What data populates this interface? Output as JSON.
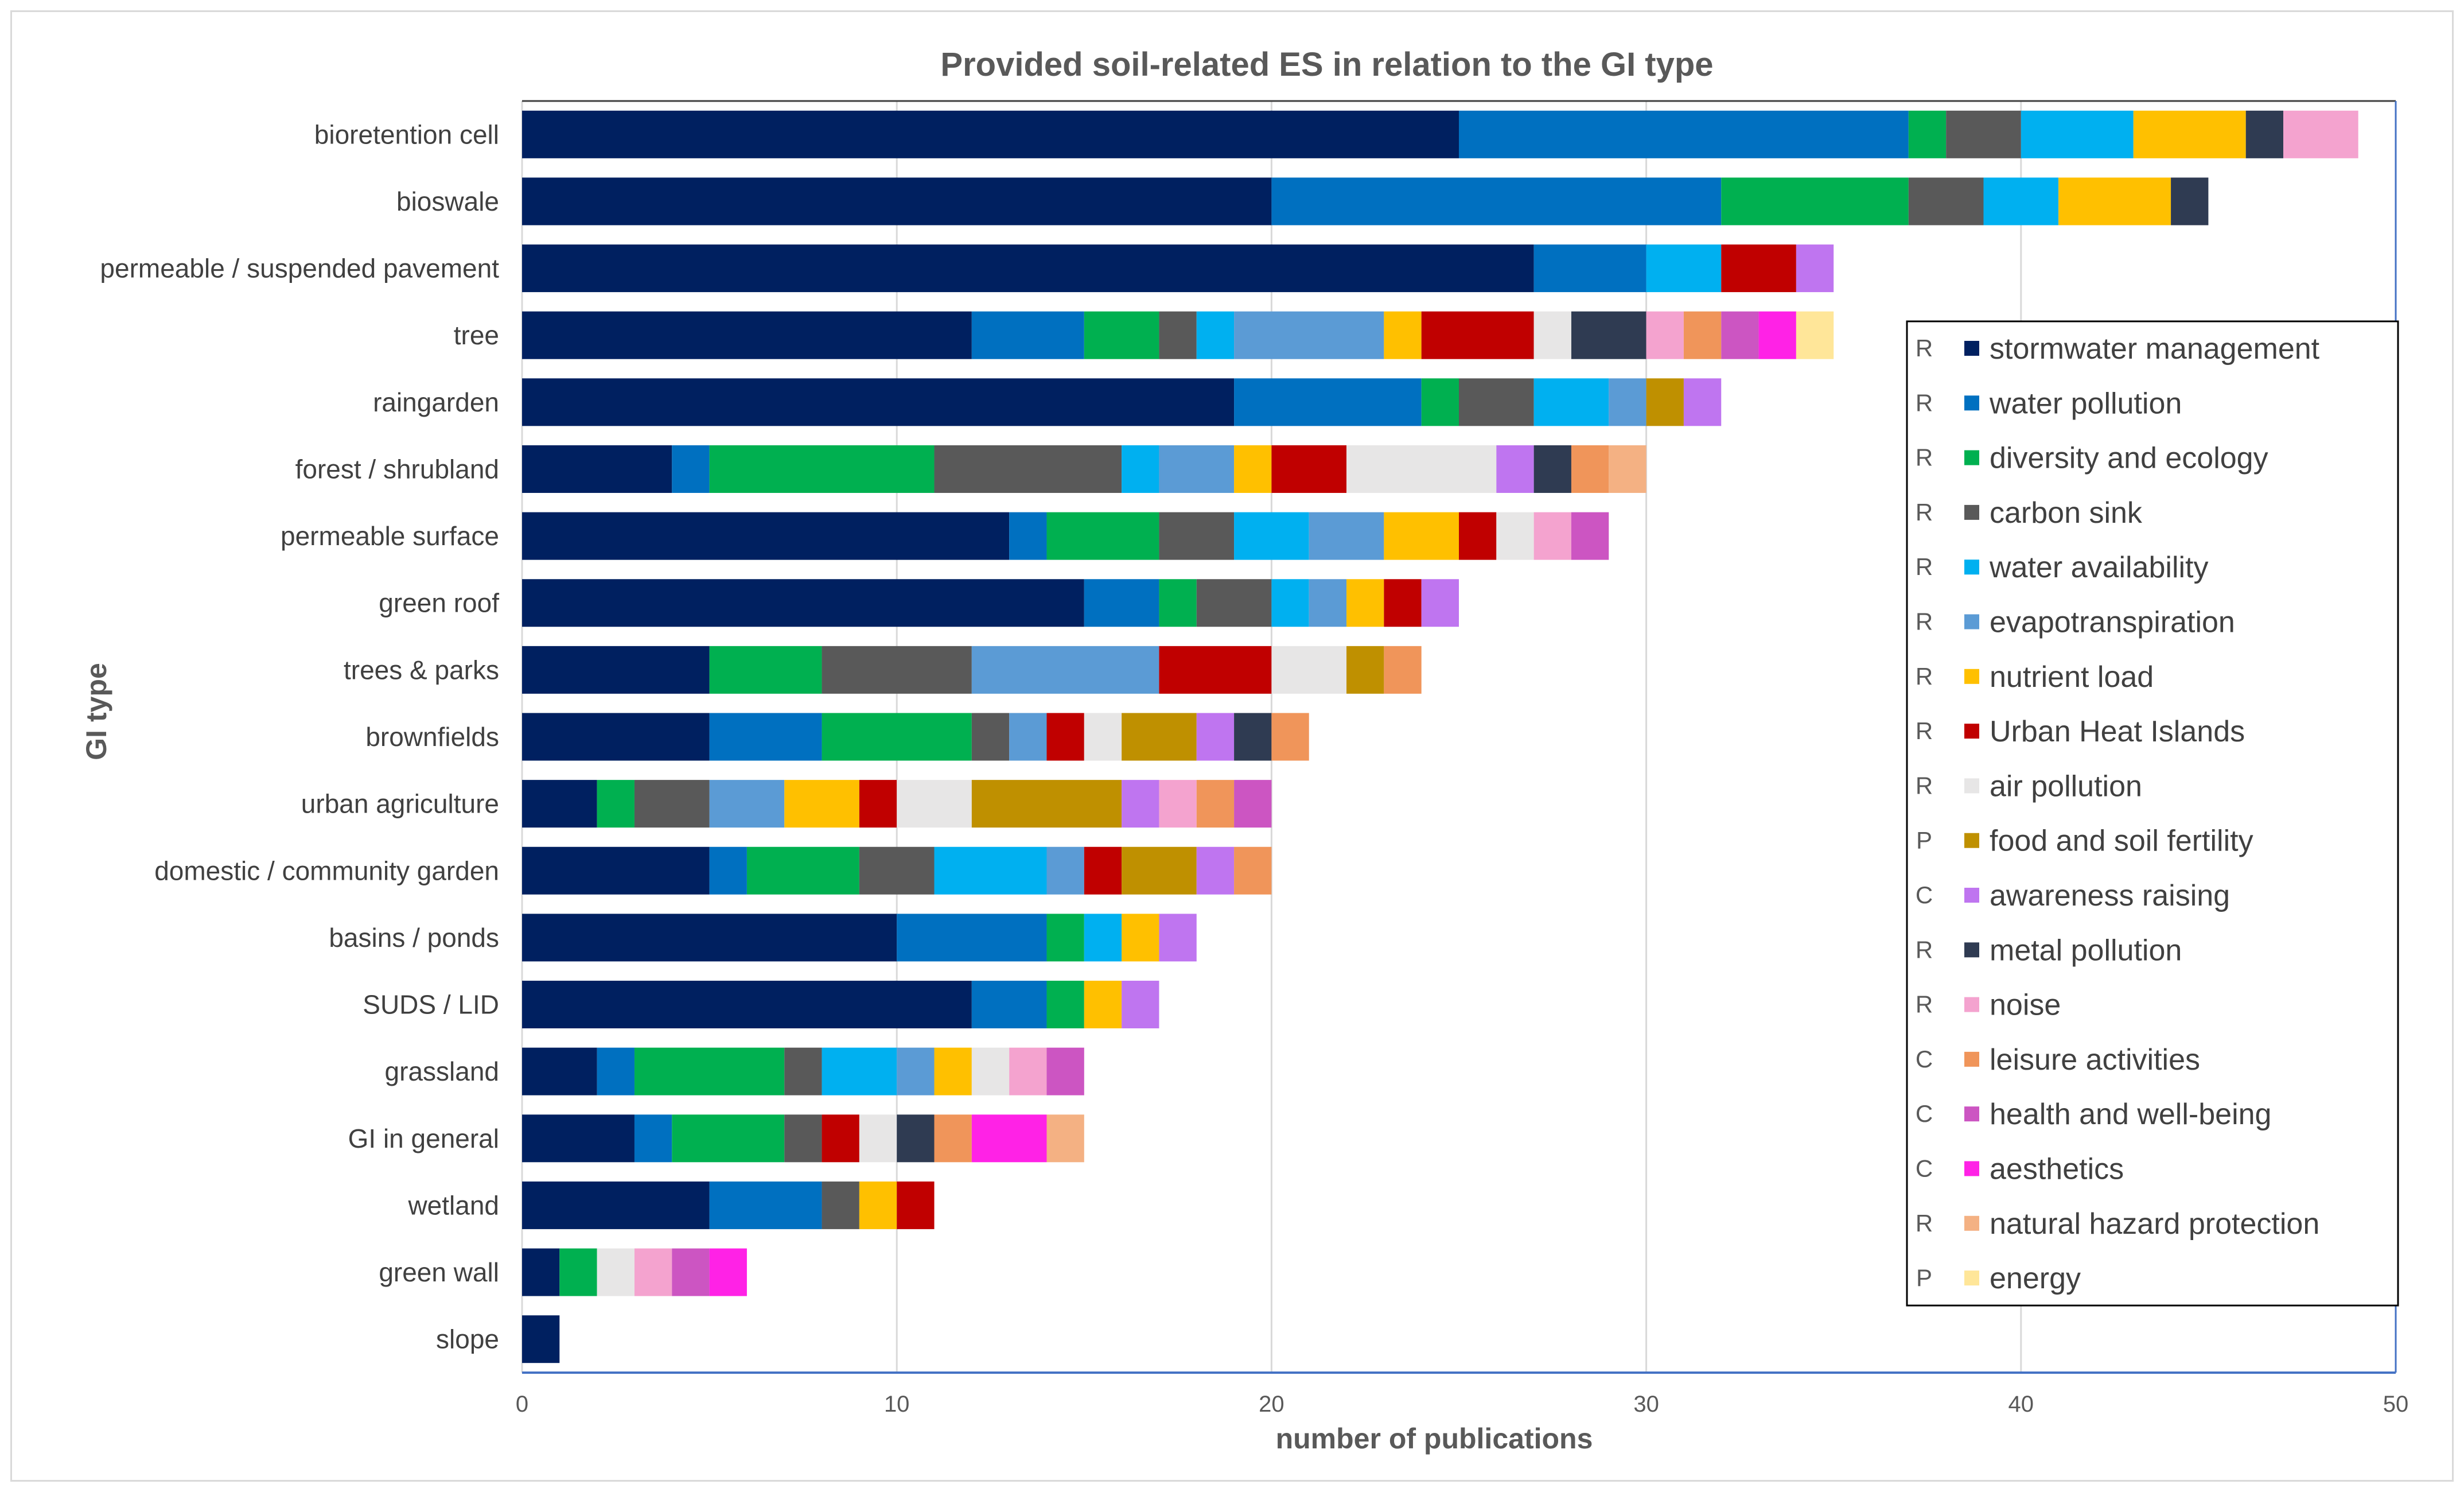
{
  "chart_data": {
    "type": "bar",
    "orientation": "horizontal",
    "stacked": true,
    "title": "Provided soil-related ES in relation to the GI type",
    "xlabel": "number of publications",
    "ylabel": "GI type",
    "xlim": [
      0,
      50
    ],
    "xticks": [
      0,
      10,
      20,
      30,
      40,
      50
    ],
    "grid": "vertical",
    "legend_position": "right",
    "categories": [
      "bioretention cell",
      "bioswale",
      "permeable / suspended pavement",
      "tree",
      "raingarden",
      "forest / shrubland",
      "permeable surface",
      "green roof",
      "trees & parks",
      "brownfields",
      "urban agriculture",
      "domestic / community garden",
      "basins / ponds",
      "SUDS / LID",
      "grassland",
      "GI in general",
      "wetland",
      "green wall",
      "slope"
    ],
    "series": [
      {
        "name": "stormwater management",
        "code": "R",
        "color": "#002060",
        "values": [
          25,
          20,
          27,
          12,
          19,
          4,
          13,
          15,
          5,
          5,
          2,
          5,
          10,
          12,
          2,
          3,
          5,
          1,
          1
        ]
      },
      {
        "name": "water pollution",
        "code": "R",
        "color": "#0070C0",
        "values": [
          12,
          12,
          3,
          3,
          5,
          1,
          1,
          2,
          0,
          3,
          0,
          1,
          4,
          2,
          1,
          1,
          3,
          0,
          0
        ]
      },
      {
        "name": "diversity and ecology",
        "code": "R",
        "color": "#00B050",
        "values": [
          1,
          5,
          0,
          2,
          1,
          6,
          3,
          1,
          3,
          4,
          1,
          3,
          1,
          1,
          4,
          3,
          0,
          1,
          0
        ]
      },
      {
        "name": "carbon sink",
        "code": "R",
        "color": "#595959",
        "values": [
          2,
          2,
          0,
          1,
          2,
          5,
          2,
          2,
          4,
          1,
          2,
          2,
          0,
          0,
          1,
          1,
          1,
          0,
          0
        ]
      },
      {
        "name": "water availability",
        "code": "R",
        "color": "#00B0F0",
        "values": [
          3,
          2,
          2,
          1,
          2,
          1,
          2,
          1,
          0,
          0,
          0,
          3,
          1,
          0,
          2,
          0,
          0,
          0,
          0
        ]
      },
      {
        "name": "evapotranspiration",
        "code": "R",
        "color": "#5B9BD5",
        "values": [
          0,
          0,
          0,
          4,
          1,
          2,
          2,
          1,
          5,
          1,
          2,
          1,
          0,
          0,
          1,
          0,
          0,
          0,
          0
        ]
      },
      {
        "name": "nutrient load",
        "code": "R",
        "color": "#FFC000",
        "values": [
          3,
          3,
          0,
          1,
          0,
          1,
          2,
          1,
          0,
          0,
          2,
          0,
          1,
          1,
          1,
          0,
          1,
          0,
          0
        ]
      },
      {
        "name": "Urban Heat Islands",
        "code": "R",
        "color": "#C00000",
        "values": [
          0,
          0,
          2,
          3,
          0,
          2,
          1,
          1,
          3,
          1,
          1,
          1,
          0,
          0,
          0,
          1,
          1,
          0,
          0
        ]
      },
      {
        "name": "air pollution",
        "code": "R",
        "color": "#E7E6E6",
        "values": [
          0,
          0,
          0,
          1,
          0,
          4,
          1,
          0,
          2,
          1,
          2,
          0,
          0,
          0,
          1,
          1,
          0,
          1,
          0
        ]
      },
      {
        "name": "food and soil fertility",
        "code": "P",
        "color": "#BF9000",
        "values": [
          0,
          0,
          0,
          0,
          1,
          0,
          0,
          0,
          1,
          2,
          4,
          2,
          0,
          0,
          0,
          0,
          0,
          0,
          0
        ]
      },
      {
        "name": "awareness raising",
        "code": "C",
        "color": "#BF75F0",
        "values": [
          0,
          0,
          1,
          0,
          1,
          1,
          0,
          1,
          0,
          1,
          1,
          1,
          1,
          1,
          0,
          0,
          0,
          0,
          0
        ]
      },
      {
        "name": "metal pollution",
        "code": "R",
        "color": "#2F3B52",
        "values": [
          1,
          1,
          0,
          2,
          0,
          1,
          0,
          0,
          0,
          1,
          0,
          0,
          0,
          0,
          0,
          1,
          0,
          0,
          0
        ]
      },
      {
        "name": "noise",
        "code": "R",
        "color": "#F4A3CF",
        "values": [
          2,
          0,
          0,
          1,
          0,
          0,
          1,
          0,
          0,
          0,
          1,
          0,
          0,
          0,
          1,
          0,
          0,
          1,
          0
        ]
      },
      {
        "name": "leisure activities",
        "code": "C",
        "color": "#F0955A",
        "values": [
          0,
          0,
          0,
          1,
          0,
          1,
          0,
          0,
          1,
          1,
          1,
          1,
          0,
          0,
          0,
          1,
          0,
          0,
          0
        ]
      },
      {
        "name": "health and well-being",
        "code": "C",
        "color": "#CC55C2",
        "values": [
          0,
          0,
          0,
          1,
          0,
          0,
          1,
          0,
          0,
          0,
          1,
          0,
          0,
          0,
          1,
          0,
          0,
          1,
          0
        ]
      },
      {
        "name": "aesthetics",
        "code": "C",
        "color": "#FF22E6",
        "values": [
          0,
          0,
          0,
          1,
          0,
          0,
          0,
          0,
          0,
          0,
          0,
          0,
          0,
          0,
          0,
          2,
          0,
          1,
          0
        ]
      },
      {
        "name": "natural hazard protection",
        "code": "R",
        "color": "#F4B183",
        "values": [
          0,
          0,
          0,
          0,
          0,
          1,
          0,
          0,
          0,
          0,
          0,
          0,
          0,
          0,
          0,
          1,
          0,
          0,
          0
        ]
      },
      {
        "name": "energy",
        "code": "P",
        "color": "#FFE699",
        "values": [
          0,
          0,
          0,
          1,
          0,
          0,
          0,
          0,
          0,
          0,
          0,
          0,
          0,
          0,
          0,
          0,
          0,
          0,
          0
        ]
      }
    ]
  }
}
